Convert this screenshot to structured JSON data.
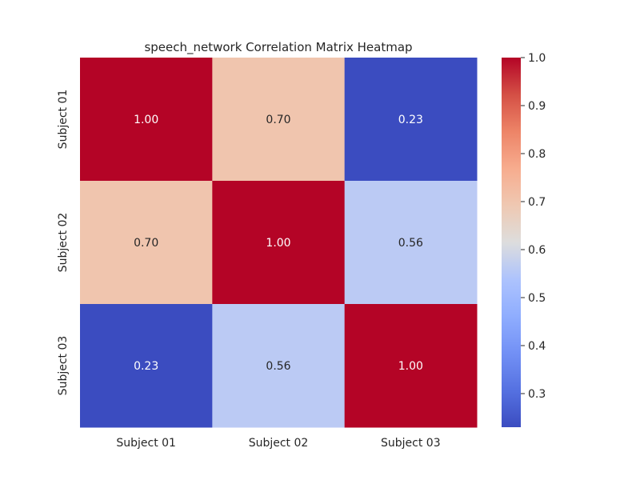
{
  "chart_data": {
    "type": "heatmap",
    "title": "speech_network Correlation Matrix Heatmap",
    "x_labels": [
      "Subject 01",
      "Subject 02",
      "Subject 03"
    ],
    "y_labels": [
      "Subject 01",
      "Subject 02",
      "Subject 03"
    ],
    "values": [
      [
        1.0,
        0.7,
        0.23
      ],
      [
        0.7,
        1.0,
        0.56
      ],
      [
        0.23,
        0.56,
        1.0
      ]
    ],
    "cell_labels": [
      [
        "1.00",
        "0.70",
        "0.23"
      ],
      [
        "0.70",
        "1.00",
        "0.56"
      ],
      [
        "0.23",
        "0.56",
        "1.00"
      ]
    ],
    "colormap": "coolwarm",
    "color_range": [
      0.23,
      1.0
    ],
    "colorbar": {
      "position": "right",
      "ticks": [
        0.3,
        0.4,
        0.5,
        0.6,
        0.7,
        0.8,
        0.9,
        1.0
      ],
      "tick_labels": [
        "0.3",
        "0.4",
        "0.5",
        "0.6",
        "0.7",
        "0.8",
        "0.9",
        "1.0"
      ]
    },
    "grid": false
  }
}
